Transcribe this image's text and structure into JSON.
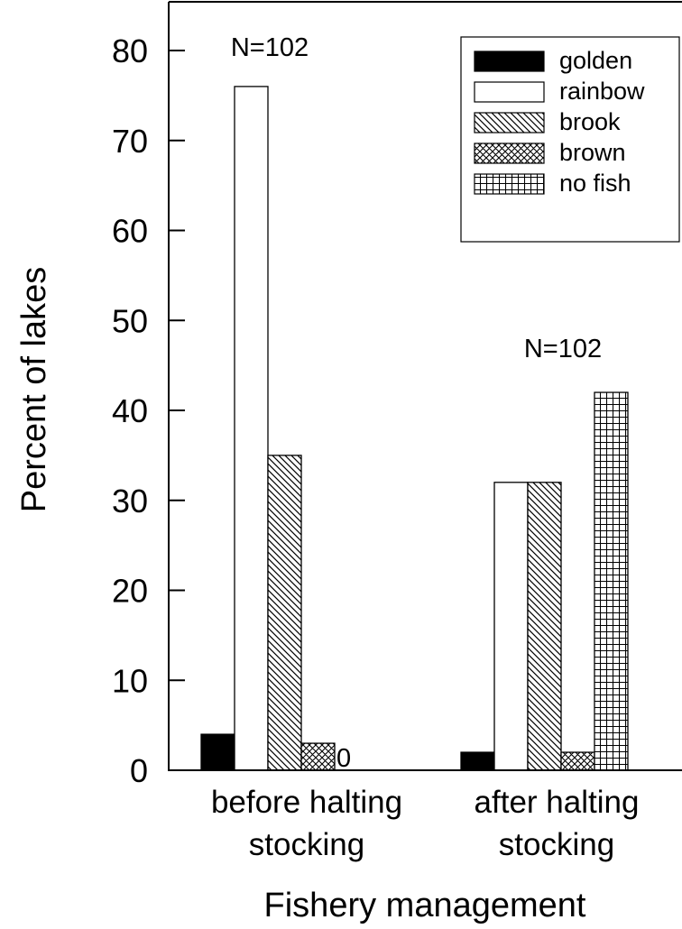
{
  "chart_data": {
    "type": "bar",
    "xlabel": "Fishery management",
    "ylabel": "Percent of lakes",
    "ylim": [
      0,
      85
    ],
    "yticks": [
      0,
      10,
      20,
      30,
      40,
      50,
      60,
      70,
      80
    ],
    "categories": [
      {
        "lines": [
          "before halting",
          "stocking"
        ]
      },
      {
        "lines": [
          "after halting",
          "stocking"
        ]
      }
    ],
    "group_annotations": [
      "N=102",
      "N=102"
    ],
    "series": [
      {
        "name": "golden",
        "pattern": "solid",
        "values": [
          4,
          2
        ]
      },
      {
        "name": "rainbow",
        "pattern": "white",
        "values": [
          76,
          32
        ]
      },
      {
        "name": "brook",
        "pattern": "diag",
        "values": [
          35,
          32
        ]
      },
      {
        "name": "brown",
        "pattern": "cross",
        "values": [
          3,
          2
        ]
      },
      {
        "name": "no fish",
        "pattern": "grid",
        "values": [
          0,
          42
        ]
      }
    ],
    "value_labels": [
      {
        "series": 4,
        "category": 0,
        "text": "0"
      }
    ],
    "legend_position": "top-right",
    "grid": false
  }
}
